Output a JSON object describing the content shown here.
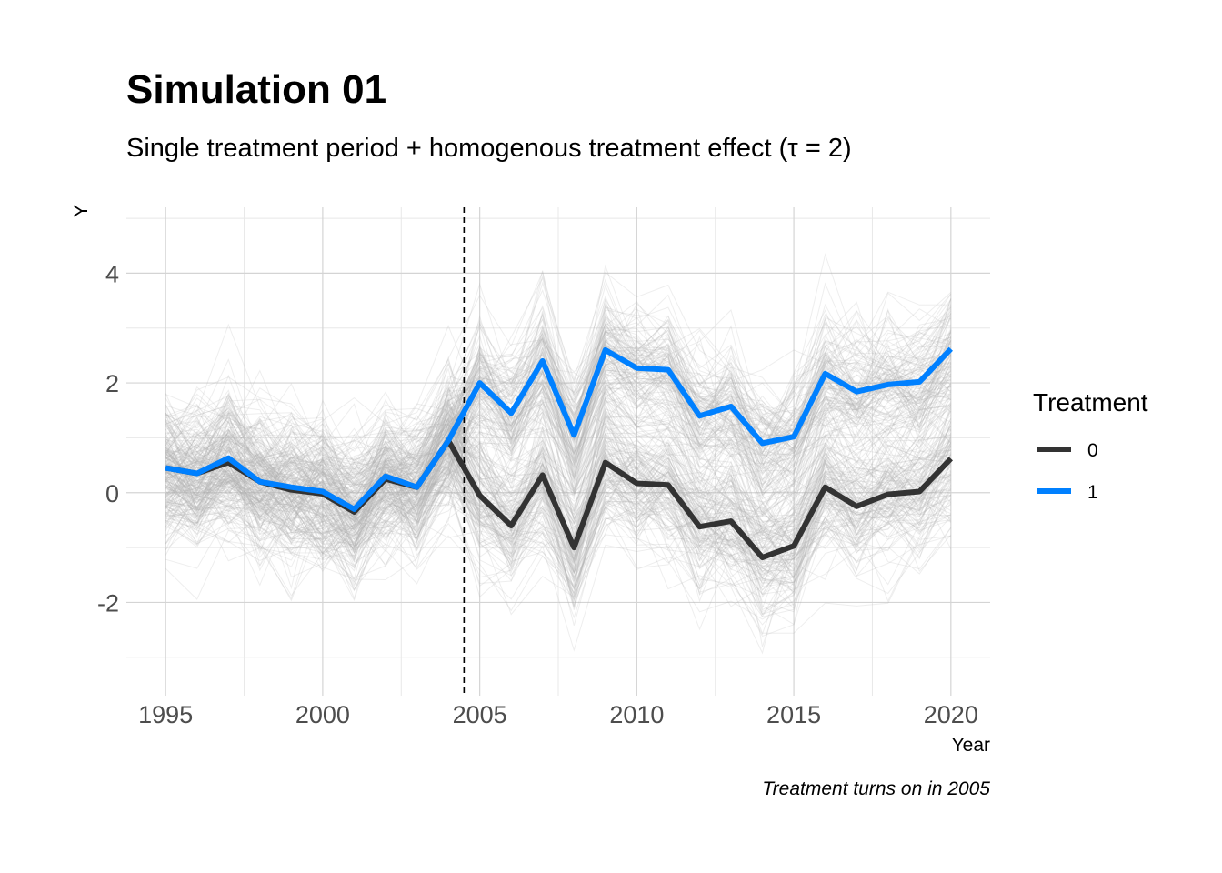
{
  "chart_data": {
    "type": "line",
    "title": "Simulation 01",
    "subtitle": "Single treatment period + homogenous treatment effect (τ = 2)",
    "caption": "Treatment turns on in 2005",
    "xlabel": "Year",
    "ylabel": "Y",
    "xlim": [
      1993.75,
      2021.25
    ],
    "ylim": [
      -3.7,
      5.2
    ],
    "x_ticks": [
      1995,
      2000,
      2005,
      2010,
      2015,
      2020
    ],
    "x_tick_labels": [
      "1995",
      "2000",
      "2005",
      "2010",
      "2015",
      "2020"
    ],
    "y_ticks": [
      -2,
      0,
      2,
      4
    ],
    "y_tick_labels": [
      "-2",
      "0",
      "2",
      "4"
    ],
    "grid": true,
    "treatment_line_x": 2004.5,
    "x": [
      1995,
      1996,
      1997,
      1998,
      1999,
      2000,
      2001,
      2002,
      2003,
      2004,
      2005,
      2006,
      2007,
      2008,
      2009,
      2010,
      2011,
      2012,
      2013,
      2014,
      2015,
      2016,
      2017,
      2018,
      2019,
      2020
    ],
    "series": [
      {
        "name": "0",
        "color": "#333333",
        "values": [
          0.45,
          0.35,
          0.55,
          0.2,
          0.05,
          -0.02,
          -0.35,
          0.25,
          0.1,
          0.95,
          -0.05,
          -0.6,
          0.32,
          -1.0,
          0.55,
          0.17,
          0.14,
          -0.62,
          -0.52,
          -1.18,
          -0.97,
          0.1,
          -0.25,
          -0.03,
          0.02,
          0.62
        ]
      },
      {
        "name": "1",
        "color": "#0080ff",
        "values": [
          0.45,
          0.35,
          0.63,
          0.2,
          0.1,
          0.02,
          -0.3,
          0.3,
          0.1,
          0.95,
          2.0,
          1.45,
          2.4,
          1.05,
          2.6,
          2.27,
          2.24,
          1.4,
          1.57,
          0.9,
          1.02,
          2.17,
          1.84,
          1.97,
          2.02,
          2.62
        ]
      }
    ],
    "background_series_color": "#b3b3b3",
    "legend": {
      "title": "Treatment",
      "placement": "right",
      "entries": [
        "0",
        "1"
      ]
    }
  }
}
